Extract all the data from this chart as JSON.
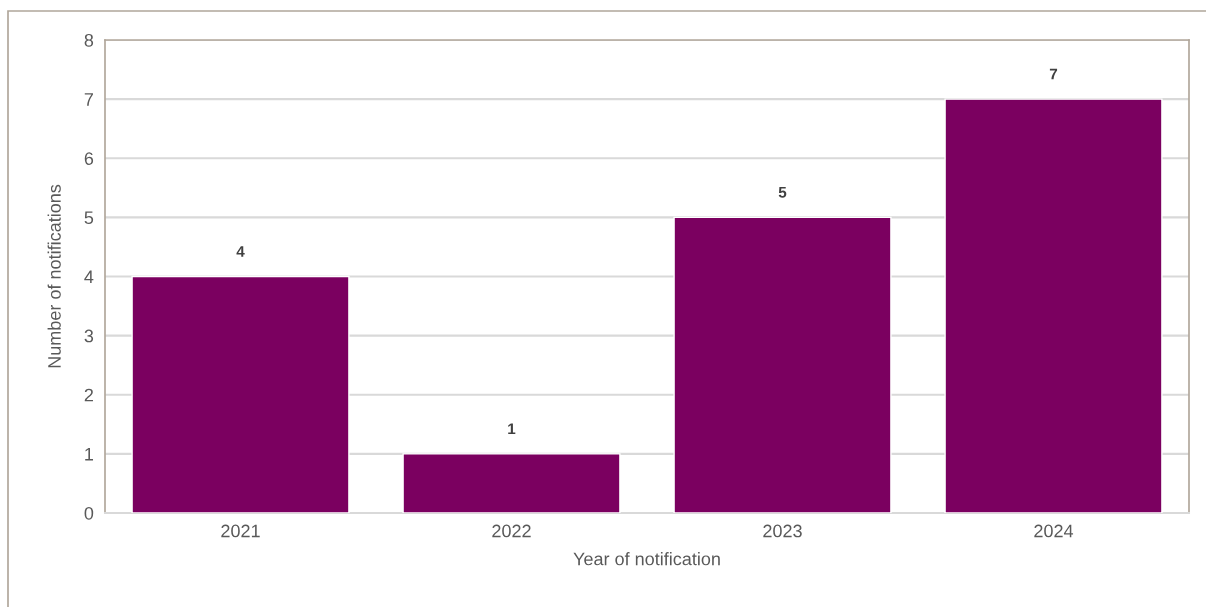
{
  "chart_data": {
    "type": "bar",
    "xlabel": "Year of notification",
    "ylabel": "Number of notifications",
    "categories": [
      "2021",
      "2022",
      "2023",
      "2024"
    ],
    "values": [
      4,
      1,
      5,
      7
    ],
    "color": "#7b0060",
    "ylim": [
      0,
      8
    ],
    "yticks": [
      0,
      1,
      2,
      3,
      4,
      5,
      6,
      7,
      8
    ],
    "grid": "y",
    "data_labels": true
  }
}
